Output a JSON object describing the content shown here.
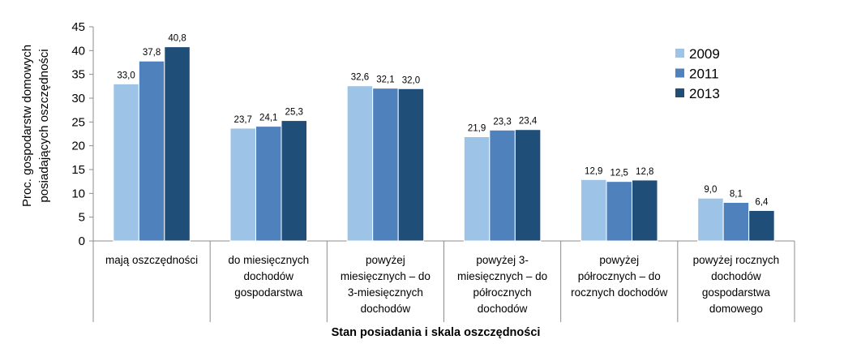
{
  "chart_data": {
    "type": "bar",
    "title": "",
    "xlabel": "Stan posiadania i skala oszczędności",
    "ylabel": [
      "Proc. gospodarstw domowych",
      "posiadających oszczędności"
    ],
    "ylim": [
      0,
      45
    ],
    "yticks": [
      0,
      5,
      10,
      15,
      20,
      25,
      30,
      35,
      40,
      45
    ],
    "grid": false,
    "legend_position": "right",
    "categories": [
      [
        "mają oszczędności"
      ],
      [
        "do miesięcznych",
        "dochodów",
        "gospodarstwa"
      ],
      [
        "powyżej",
        "miesięcznych – do",
        "3-miesięcznych",
        "dochodów"
      ],
      [
        "powyżej 3-",
        "miesięcznych – do",
        "półrocznych",
        "dochodów"
      ],
      [
        "powyżej",
        "półrocznych – do",
        "rocznych dochodów"
      ],
      [
        "powyżej rocznych",
        "dochodów",
        "gospodarstwa",
        "domowego"
      ]
    ],
    "series": [
      {
        "name": "2009",
        "color": "#9dc3e6",
        "values": [
          33.0,
          23.7,
          32.6,
          21.9,
          12.9,
          9.0
        ],
        "labels": [
          "33,0",
          "23,7",
          "32,6",
          "21,9",
          "12,9",
          "9,0"
        ]
      },
      {
        "name": "2011",
        "color": "#4f81bd",
        "values": [
          37.8,
          24.1,
          32.1,
          23.3,
          12.5,
          8.1
        ],
        "labels": [
          "37,8",
          "24,1",
          "32,1",
          "23,3",
          "12,5",
          "8,1"
        ]
      },
      {
        "name": "2013",
        "color": "#1f4e79",
        "values": [
          40.8,
          25.3,
          32.0,
          23.4,
          12.8,
          6.4
        ],
        "labels": [
          "40,8",
          "25,3",
          "32,0",
          "23,4",
          "12,8",
          "6,4"
        ]
      }
    ]
  }
}
